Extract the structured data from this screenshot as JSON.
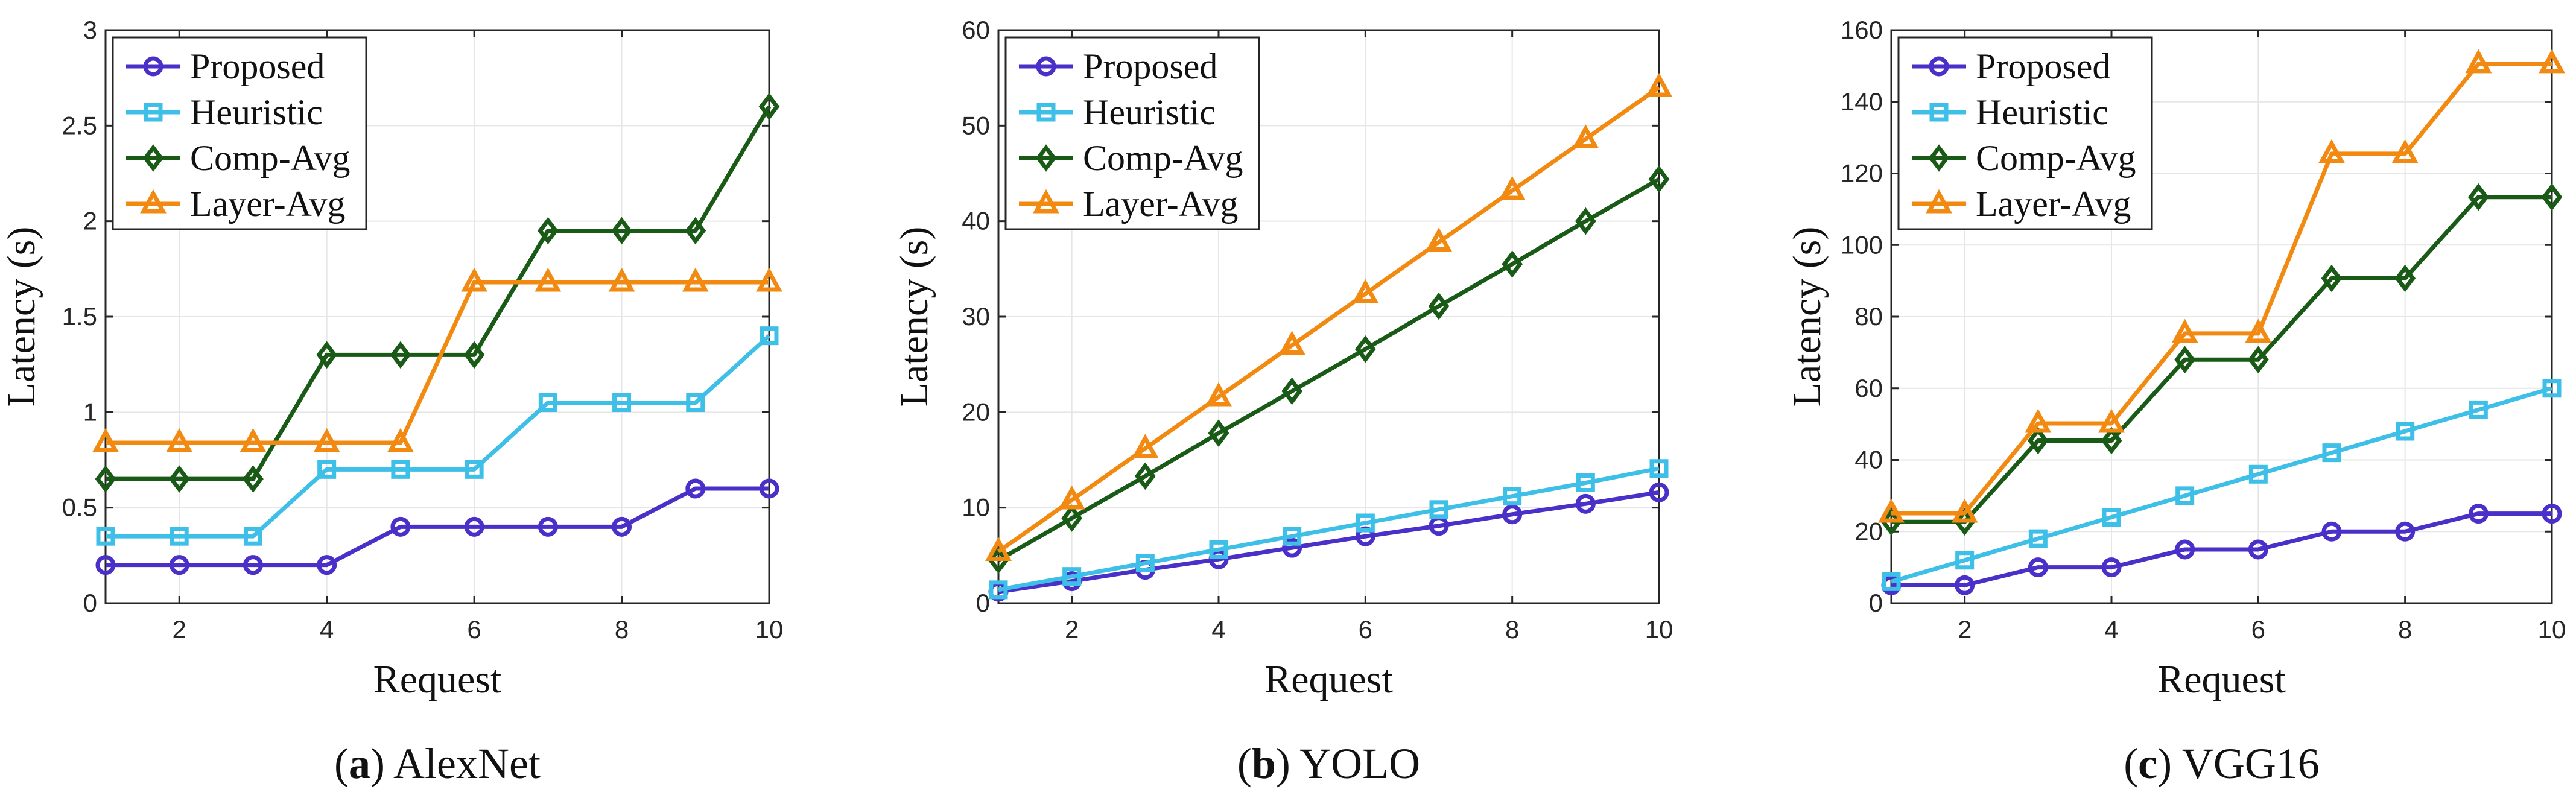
{
  "chart_data": [
    {
      "type": "line",
      "panel_label": "a",
      "title": "AlexNet",
      "xlabel": "Request",
      "ylabel": "Latency (s)",
      "xlim": [
        1,
        10
      ],
      "ylim": [
        0,
        3
      ],
      "xticks": [
        2,
        4,
        6,
        8,
        10
      ],
      "yticks": [
        0,
        0.5,
        1,
        1.5,
        2,
        2.5,
        3
      ],
      "ytick_labels": [
        "0",
        "0.5",
        "1",
        "1.5",
        "2",
        "2.5",
        "3"
      ],
      "grid": true,
      "legend_position": "top-left",
      "x": [
        1,
        2,
        3,
        4,
        5,
        6,
        7,
        8,
        9,
        10
      ],
      "series": [
        {
          "name": "Proposed",
          "color": "#4b2fc9",
          "marker": "circle",
          "values": [
            0.2,
            0.2,
            0.2,
            0.2,
            0.4,
            0.4,
            0.4,
            0.4,
            0.6,
            0.6
          ]
        },
        {
          "name": "Heuristic",
          "color": "#3dbfe8",
          "marker": "square",
          "values": [
            0.35,
            0.35,
            0.35,
            0.7,
            0.7,
            0.7,
            1.05,
            1.05,
            1.05,
            1.4
          ]
        },
        {
          "name": "Comp-Avg",
          "color": "#1a5a17",
          "marker": "diamond",
          "values": [
            0.65,
            0.65,
            0.65,
            1.3,
            1.3,
            1.3,
            1.95,
            1.95,
            1.95,
            2.6
          ]
        },
        {
          "name": "Layer-Avg",
          "color": "#f28a12",
          "marker": "triangle",
          "values": [
            0.84,
            0.84,
            0.84,
            0.84,
            0.84,
            1.68,
            1.68,
            1.68,
            1.68,
            1.68
          ]
        }
      ]
    },
    {
      "type": "line",
      "panel_label": "b",
      "title": "YOLO",
      "xlabel": "Request",
      "ylabel": "Latency (s)",
      "xlim": [
        1,
        10
      ],
      "ylim": [
        0,
        60
      ],
      "xticks": [
        2,
        4,
        6,
        8,
        10
      ],
      "yticks": [
        0,
        10,
        20,
        30,
        40,
        50,
        60
      ],
      "ytick_labels": [
        "0",
        "10",
        "20",
        "30",
        "40",
        "50",
        "60"
      ],
      "grid": true,
      "legend_position": "top-left",
      "x": [
        1,
        2,
        3,
        4,
        5,
        6,
        7,
        8,
        9,
        10
      ],
      "series": [
        {
          "name": "Proposed",
          "color": "#4b2fc9",
          "marker": "circle",
          "values": [
            1.2,
            2.3,
            3.5,
            4.6,
            5.8,
            7.0,
            8.1,
            9.3,
            10.4,
            11.6
          ]
        },
        {
          "name": "Heuristic",
          "color": "#3dbfe8",
          "marker": "square",
          "values": [
            1.4,
            2.8,
            4.2,
            5.6,
            7.0,
            8.4,
            9.8,
            11.2,
            12.6,
            14.1
          ]
        },
        {
          "name": "Comp-Avg",
          "color": "#1a5a17",
          "marker": "diamond",
          "values": [
            4.5,
            8.9,
            13.3,
            17.8,
            22.2,
            26.6,
            31.1,
            35.5,
            40.0,
            44.4
          ]
        },
        {
          "name": "Layer-Avg",
          "color": "#f28a12",
          "marker": "triangle",
          "values": [
            5.4,
            10.8,
            16.2,
            21.6,
            27.0,
            32.4,
            37.8,
            43.2,
            48.6,
            54.0
          ]
        }
      ]
    },
    {
      "type": "line",
      "panel_label": "c",
      "title": "VGG16",
      "xlabel": "Request",
      "ylabel": "Latency (s)",
      "xlim": [
        1,
        10
      ],
      "ylim": [
        0,
        160
      ],
      "xticks": [
        2,
        4,
        6,
        8,
        10
      ],
      "yticks": [
        0,
        20,
        40,
        60,
        80,
        100,
        120,
        140,
        160
      ],
      "ytick_labels": [
        "0",
        "20",
        "40",
        "60",
        "80",
        "100",
        "120",
        "140",
        "160"
      ],
      "grid": true,
      "legend_position": "top-left",
      "x": [
        1,
        2,
        3,
        4,
        5,
        6,
        7,
        8,
        9,
        10
      ],
      "series": [
        {
          "name": "Proposed",
          "color": "#4b2fc9",
          "marker": "circle",
          "values": [
            5,
            5,
            10,
            10,
            15,
            15,
            20,
            20,
            25,
            25
          ]
        },
        {
          "name": "Heuristic",
          "color": "#3dbfe8",
          "marker": "square",
          "values": [
            6,
            12,
            18,
            24,
            30,
            36,
            42,
            48,
            54,
            60
          ]
        },
        {
          "name": "Comp-Avg",
          "color": "#1a5a17",
          "marker": "diamond",
          "values": [
            22.7,
            22.7,
            45.4,
            45.4,
            68,
            68,
            90.7,
            90.7,
            113.4,
            113.4
          ]
        },
        {
          "name": "Layer-Avg",
          "color": "#f28a12",
          "marker": "triangle",
          "values": [
            25.1,
            25.1,
            50.2,
            50.2,
            75.3,
            75.3,
            125.5,
            125.5,
            150.6,
            150.6
          ]
        }
      ]
    }
  ]
}
